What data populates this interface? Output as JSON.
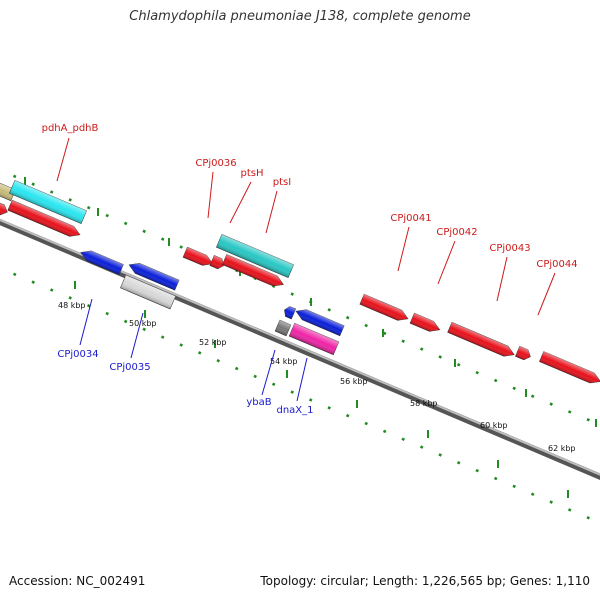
{
  "title": "Chlamydophila pneumoniae J138, complete genome",
  "footer": {
    "accession": "Accession: NC_002491",
    "topology": "Topology: circular; Length: 1,226,565 bp; Genes: 1,110"
  },
  "colors": {
    "red": "#e8111b",
    "blue": "#0a1fd9",
    "cyan": "#29e6f0",
    "teal": "#27c7c4",
    "light_gray": "#d8d8d8",
    "dark_gray": "#777777",
    "magenta": "#f024a6",
    "olive": "#c8bc7a",
    "label_red": "#cc1a1a",
    "label_blue": "#1a1acc",
    "tick_green": "#228b22"
  },
  "scale_labels": [
    "48 kbp",
    "50 kbp",
    "52 kbp",
    "54 kbp",
    "56 kbp",
    "58 kbp",
    "60 kbp",
    "62 kbp"
  ],
  "gene_labels": [
    "pdhA_pdhB",
    "CPj0036",
    "ptsH",
    "ptsI",
    "CPj0041",
    "CPj0042",
    "CPj0043",
    "CPj0044",
    "CPj0034",
    "CPj0035",
    "ybaB",
    "dnaX_1"
  ]
}
